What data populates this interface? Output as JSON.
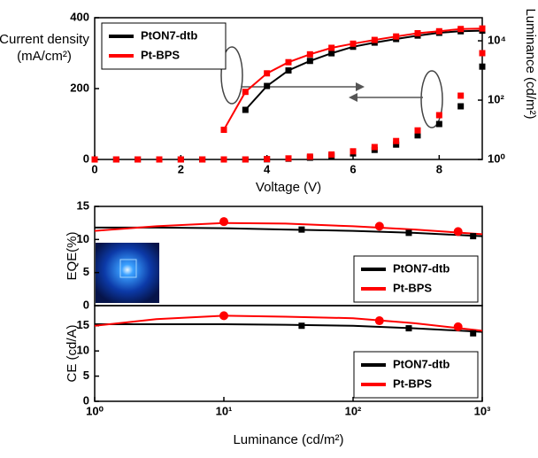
{
  "chart_data": [
    {
      "type": "line",
      "xlabel": "Voltage (V)",
      "ylabel": [
        "Current density",
        "(mA/cm²)"
      ],
      "y2label": "Luminance (cd/m²)",
      "x": [
        0,
        0.5,
        1,
        1.5,
        2,
        2.5,
        3,
        3.5,
        4,
        4.5,
        5,
        5.5,
        6,
        6.5,
        7,
        7.5,
        8,
        8.5,
        9
      ],
      "xlim": [
        0,
        9
      ],
      "xticks": [
        0,
        2,
        4,
        6,
        8
      ],
      "ylim": [
        0,
        400
      ],
      "yticks": [
        0,
        200,
        400
      ],
      "y2lim": [
        1,
        60000
      ],
      "y2scale": "log",
      "y2ticks": [
        {
          "value": 1,
          "label": "10⁰"
        },
        {
          "value": 100,
          "label": "10²"
        },
        {
          "value": 10000,
          "label": "10⁴"
        }
      ],
      "legend": "upper left",
      "series": [
        {
          "name": "PtON7-dtb",
          "color": "#000000",
          "marker": "square",
          "values": [
            0,
            0,
            0,
            0,
            0,
            0,
            0,
            0,
            0.5,
            2,
            5,
            10,
            17,
            27,
            42,
            68,
            100,
            150,
            262
          ]
        },
        {
          "name": "Pt-BPS",
          "color": "#ff0000",
          "marker": "square",
          "values": [
            0,
            0,
            0,
            0,
            0,
            0,
            0,
            0,
            1,
            3,
            8,
            14,
            23,
            35,
            52,
            82,
            125,
            180,
            300
          ]
        },
        {
          "color": "#000000",
          "marker": "square",
          "axis": "y2",
          "values": [
            null,
            null,
            null,
            null,
            null,
            null,
            null,
            47,
            300,
            1000,
            2100,
            3800,
            6300,
            8700,
            11500,
            15000,
            18600,
            21000,
            22000
          ]
        },
        {
          "color": "#ff0000",
          "marker": "square",
          "axis": "y2",
          "values": [
            null,
            null,
            null,
            null,
            null,
            null,
            10,
            190,
            800,
            1900,
            3500,
            5800,
            8000,
            10700,
            14000,
            18000,
            21000,
            25000,
            26000
          ]
        }
      ]
    },
    {
      "type": "line",
      "ylabel": "EQE(%)",
      "xlim": [
        1,
        1000
      ],
      "xscale": "log",
      "ylim": [
        0,
        15
      ],
      "yticks": [
        0,
        5,
        10,
        15
      ],
      "legend": "lower right",
      "series": [
        {
          "color": "#000000",
          "x": [
            1,
            3,
            10,
            30,
            100,
            300,
            1000
          ],
          "values": [
            11.8,
            11.8,
            11.7,
            11.5,
            11.3,
            11,
            10.5
          ]
        },
        {
          "color": "#ff0000",
          "x": [
            1,
            3,
            10,
            30,
            100,
            300,
            1000
          ],
          "values": [
            11.3,
            12,
            12.5,
            12.4,
            12,
            11.5,
            10.8
          ]
        },
        {
          "name": "PtON7-dtb",
          "color": "#000000",
          "marker": "square",
          "x": [
            40,
            270,
            850
          ],
          "values": [
            11.5,
            11,
            10.5
          ]
        },
        {
          "name": "Pt-BPS",
          "color": "#ff0000",
          "marker": "circle",
          "x": [
            10,
            160,
            650
          ],
          "values": [
            12.7,
            12,
            11.2
          ]
        }
      ]
    },
    {
      "type": "line",
      "ylabel": "CE (cd/A)",
      "xlabel": "Luminance (cd/m²)",
      "xlim": [
        1,
        1000
      ],
      "xscale": "log",
      "xticks": [
        {
          "value": 1,
          "label": "10⁰"
        },
        {
          "value": 10,
          "label": "10¹"
        },
        {
          "value": 100,
          "label": "10²"
        },
        {
          "value": 1000,
          "label": "10³"
        }
      ],
      "ylim": [
        0,
        19
      ],
      "yticks": [
        0,
        5,
        10,
        15
      ],
      "legend": "lower right",
      "series": [
        {
          "color": "#000000",
          "x": [
            1,
            3,
            10,
            30,
            100,
            300,
            1000
          ],
          "values": [
            15.3,
            15.3,
            15.3,
            15.2,
            15,
            14.5,
            13.8
          ]
        },
        {
          "color": "#ff0000",
          "x": [
            1,
            3,
            10,
            30,
            100,
            300,
            1000
          ],
          "values": [
            15,
            16.3,
            17,
            16.8,
            16.5,
            15.5,
            14
          ]
        },
        {
          "name": "PtON7-dtb",
          "color": "#000000",
          "marker": "square",
          "x": [
            40,
            270,
            850
          ],
          "values": [
            15,
            14.5,
            13.5
          ]
        },
        {
          "name": "Pt-BPS",
          "color": "#ff0000",
          "marker": "circle",
          "x": [
            10,
            160,
            650
          ],
          "values": [
            17,
            16,
            14.8
          ]
        }
      ]
    }
  ]
}
